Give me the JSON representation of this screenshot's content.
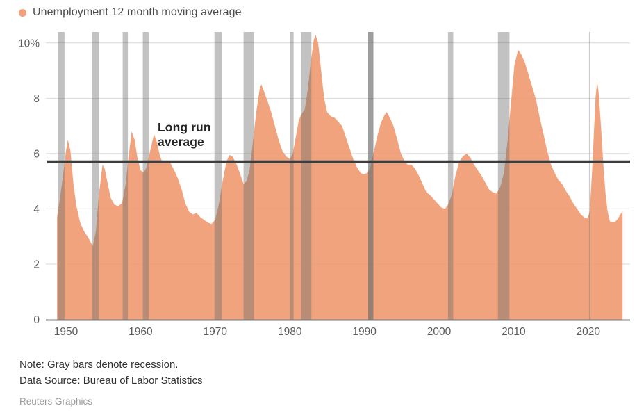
{
  "legend": {
    "label": "Unemployment 12 month moving average",
    "dot_color": "#f0a07b"
  },
  "annotation": {
    "line1": "Long run",
    "line2": "average"
  },
  "notes": {
    "note": "Note: Gray bars denote recession.",
    "source": "Data Source: Bureau of Labor Statistics",
    "credit": "Reuters Graphics"
  },
  "chart_data": {
    "type": "area",
    "title": "Unemployment 12 month moving average",
    "xlabel": "",
    "ylabel": "",
    "ylim": [
      0,
      10
    ],
    "x_domain": [
      1948.8,
      2024.6
    ],
    "grid": "horizontal-only",
    "legend_position": "top-left",
    "long_run_average": 5.7,
    "colors": {
      "area": "#ef9b72",
      "area_opacity": 0.92,
      "recession": "#6e6e6e",
      "recession_default_opacity": 0.42,
      "long_run_line": "#3d3d3d",
      "grid": "#d8d8d8",
      "axis": "#4f4f4f",
      "tick_label": "#5b5b5b"
    },
    "y_ticks": [
      {
        "v": 0,
        "label": "0"
      },
      {
        "v": 2,
        "label": "2"
      },
      {
        "v": 4,
        "label": "4"
      },
      {
        "v": 6,
        "label": "6"
      },
      {
        "v": 8,
        "label": "8"
      },
      {
        "v": 10,
        "label": "10%"
      }
    ],
    "x_ticks": [
      {
        "v": 1950,
        "label": "1950"
      },
      {
        "v": 1960,
        "label": "1960"
      },
      {
        "v": 1970,
        "label": "1970"
      },
      {
        "v": 1980,
        "label": "1980"
      },
      {
        "v": 1990,
        "label": "1990"
      },
      {
        "v": 2000,
        "label": "2000"
      },
      {
        "v": 2010,
        "label": "2010"
      },
      {
        "v": 2020,
        "label": "2020"
      }
    ],
    "recessions": [
      {
        "start": 1948.9,
        "end": 1949.8
      },
      {
        "start": 1953.5,
        "end": 1954.4
      },
      {
        "start": 1957.6,
        "end": 1958.3
      },
      {
        "start": 1960.3,
        "end": 1961.1
      },
      {
        "start": 1969.9,
        "end": 1970.9
      },
      {
        "start": 1973.8,
        "end": 1975.2
      },
      {
        "start": 1980.0,
        "end": 1980.5
      },
      {
        "start": 1981.5,
        "end": 1982.9
      },
      {
        "start": 1990.5,
        "end": 1991.2,
        "opacity": 0.68
      },
      {
        "start": 2001.2,
        "end": 2001.9
      },
      {
        "start": 2007.9,
        "end": 2009.45
      },
      {
        "start": 2020.1,
        "end": 2020.3,
        "opacity": 0.35
      }
    ],
    "series": [
      {
        "name": "Unemployment 12 month moving average",
        "points": [
          [
            1948.8,
            3.7
          ],
          [
            1949.2,
            4.4
          ],
          [
            1949.6,
            5.2
          ],
          [
            1950.0,
            6.1
          ],
          [
            1950.25,
            6.5
          ],
          [
            1950.6,
            6.1
          ],
          [
            1951.0,
            4.9
          ],
          [
            1951.4,
            4.1
          ],
          [
            1951.9,
            3.5
          ],
          [
            1952.4,
            3.2
          ],
          [
            1952.9,
            3.0
          ],
          [
            1953.3,
            2.8
          ],
          [
            1953.6,
            2.65
          ],
          [
            1954.0,
            3.2
          ],
          [
            1954.4,
            4.5
          ],
          [
            1954.9,
            5.6
          ],
          [
            1955.2,
            5.45
          ],
          [
            1955.6,
            4.9
          ],
          [
            1956.0,
            4.4
          ],
          [
            1956.5,
            4.15
          ],
          [
            1957.0,
            4.1
          ],
          [
            1957.5,
            4.2
          ],
          [
            1958.0,
            4.9
          ],
          [
            1958.4,
            5.9
          ],
          [
            1958.8,
            6.8
          ],
          [
            1959.2,
            6.5
          ],
          [
            1959.6,
            5.8
          ],
          [
            1960.0,
            5.4
          ],
          [
            1960.4,
            5.3
          ],
          [
            1960.8,
            5.5
          ],
          [
            1961.2,
            6.0
          ],
          [
            1961.8,
            6.7
          ],
          [
            1962.2,
            6.4
          ],
          [
            1962.6,
            5.9
          ],
          [
            1963.0,
            5.65
          ],
          [
            1963.5,
            5.7
          ],
          [
            1964.0,
            5.65
          ],
          [
            1964.5,
            5.4
          ],
          [
            1965.0,
            5.1
          ],
          [
            1965.5,
            4.7
          ],
          [
            1966.0,
            4.2
          ],
          [
            1966.5,
            3.9
          ],
          [
            1967.0,
            3.8
          ],
          [
            1967.5,
            3.85
          ],
          [
            1968.0,
            3.7
          ],
          [
            1968.5,
            3.6
          ],
          [
            1969.0,
            3.5
          ],
          [
            1969.5,
            3.45
          ],
          [
            1970.0,
            3.6
          ],
          [
            1970.5,
            4.2
          ],
          [
            1971.0,
            5.0
          ],
          [
            1971.5,
            5.7
          ],
          [
            1971.9,
            5.95
          ],
          [
            1972.3,
            5.9
          ],
          [
            1972.8,
            5.65
          ],
          [
            1973.3,
            5.3
          ],
          [
            1973.8,
            4.9
          ],
          [
            1974.2,
            5.0
          ],
          [
            1974.6,
            5.4
          ],
          [
            1975.0,
            6.3
          ],
          [
            1975.5,
            7.5
          ],
          [
            1976.0,
            8.4
          ],
          [
            1976.2,
            8.5
          ],
          [
            1976.6,
            8.2
          ],
          [
            1977.0,
            7.9
          ],
          [
            1977.5,
            7.5
          ],
          [
            1978.0,
            7.0
          ],
          [
            1978.5,
            6.5
          ],
          [
            1979.0,
            6.1
          ],
          [
            1979.5,
            5.9
          ],
          [
            1980.0,
            5.8
          ],
          [
            1980.4,
            6.0
          ],
          [
            1980.8,
            6.6
          ],
          [
            1981.2,
            7.2
          ],
          [
            1981.5,
            7.4
          ],
          [
            1982.0,
            7.6
          ],
          [
            1982.4,
            8.3
          ],
          [
            1982.8,
            9.3
          ],
          [
            1983.2,
            10.1
          ],
          [
            1983.45,
            10.3
          ],
          [
            1983.8,
            10.0
          ],
          [
            1984.2,
            9.0
          ],
          [
            1984.6,
            8.0
          ],
          [
            1985.0,
            7.5
          ],
          [
            1985.5,
            7.35
          ],
          [
            1986.0,
            7.3
          ],
          [
            1986.5,
            7.15
          ],
          [
            1987.0,
            7.0
          ],
          [
            1987.5,
            6.6
          ],
          [
            1988.0,
            6.2
          ],
          [
            1988.5,
            5.8
          ],
          [
            1989.0,
            5.5
          ],
          [
            1989.5,
            5.3
          ],
          [
            1989.9,
            5.25
          ],
          [
            1990.4,
            5.3
          ],
          [
            1990.8,
            5.5
          ],
          [
            1991.2,
            6.0
          ],
          [
            1991.7,
            6.6
          ],
          [
            1992.2,
            7.1
          ],
          [
            1992.7,
            7.4
          ],
          [
            1993.0,
            7.5
          ],
          [
            1993.4,
            7.3
          ],
          [
            1993.9,
            7.0
          ],
          [
            1994.4,
            6.5
          ],
          [
            1994.9,
            6.0
          ],
          [
            1995.4,
            5.7
          ],
          [
            1995.8,
            5.6
          ],
          [
            1996.3,
            5.6
          ],
          [
            1996.8,
            5.45
          ],
          [
            1997.3,
            5.2
          ],
          [
            1997.8,
            4.9
          ],
          [
            1998.3,
            4.6
          ],
          [
            1998.8,
            4.5
          ],
          [
            1999.3,
            4.35
          ],
          [
            1999.8,
            4.2
          ],
          [
            2000.3,
            4.05
          ],
          [
            2000.8,
            4.0
          ],
          [
            2001.2,
            4.15
          ],
          [
            2001.7,
            4.5
          ],
          [
            2002.2,
            5.2
          ],
          [
            2002.7,
            5.7
          ],
          [
            2003.2,
            5.9
          ],
          [
            2003.7,
            6.0
          ],
          [
            2004.2,
            5.85
          ],
          [
            2004.7,
            5.6
          ],
          [
            2005.2,
            5.4
          ],
          [
            2005.7,
            5.2
          ],
          [
            2006.2,
            4.95
          ],
          [
            2006.7,
            4.7
          ],
          [
            2007.2,
            4.6
          ],
          [
            2007.7,
            4.55
          ],
          [
            2008.2,
            4.8
          ],
          [
            2008.7,
            5.3
          ],
          [
            2009.2,
            6.5
          ],
          [
            2009.7,
            8.0
          ],
          [
            2010.1,
            9.2
          ],
          [
            2010.6,
            9.75
          ],
          [
            2011.0,
            9.6
          ],
          [
            2011.5,
            9.3
          ],
          [
            2012.0,
            8.85
          ],
          [
            2012.5,
            8.4
          ],
          [
            2013.0,
            7.95
          ],
          [
            2013.5,
            7.3
          ],
          [
            2014.0,
            6.7
          ],
          [
            2014.5,
            6.1
          ],
          [
            2015.0,
            5.6
          ],
          [
            2015.5,
            5.3
          ],
          [
            2016.0,
            5.05
          ],
          [
            2016.5,
            4.9
          ],
          [
            2017.0,
            4.65
          ],
          [
            2017.5,
            4.45
          ],
          [
            2018.0,
            4.2
          ],
          [
            2018.5,
            4.0
          ],
          [
            2019.0,
            3.8
          ],
          [
            2019.5,
            3.68
          ],
          [
            2019.9,
            3.65
          ],
          [
            2020.2,
            3.9
          ],
          [
            2020.5,
            5.3
          ],
          [
            2020.8,
            7.0
          ],
          [
            2021.0,
            8.1
          ],
          [
            2021.2,
            8.6
          ],
          [
            2021.4,
            8.2
          ],
          [
            2021.7,
            7.0
          ],
          [
            2022.0,
            5.7
          ],
          [
            2022.3,
            4.6
          ],
          [
            2022.6,
            3.9
          ],
          [
            2022.9,
            3.55
          ],
          [
            2023.3,
            3.5
          ],
          [
            2023.7,
            3.55
          ],
          [
            2024.0,
            3.65
          ],
          [
            2024.3,
            3.8
          ],
          [
            2024.6,
            3.9
          ]
        ]
      }
    ]
  }
}
